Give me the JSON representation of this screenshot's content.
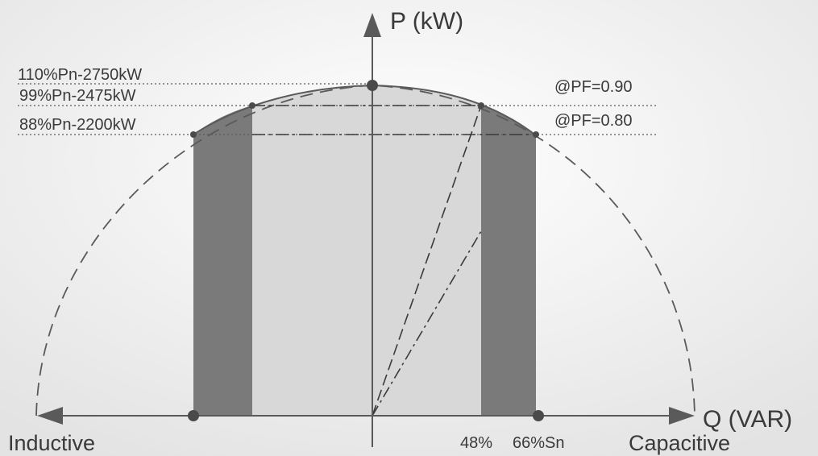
{
  "axes": {
    "y_label": "P (kW)",
    "x_label": "Q (VAR)",
    "left_label": "Inductive",
    "right_label": "Capacitive"
  },
  "levels": [
    {
      "label": "110%Pn-2750kW",
      "percent_pn": 110,
      "kw": 2750
    },
    {
      "label": "99%Pn-2475kW",
      "percent_pn": 99,
      "kw": 2475
    },
    {
      "label": "88%Pn-2200kW",
      "percent_pn": 88,
      "kw": 2200
    }
  ],
  "power_factors": [
    {
      "label": "@PF=0.90",
      "value": 0.9
    },
    {
      "label": "@PF=0.80",
      "value": 0.8
    }
  ],
  "q_markers": [
    {
      "label": "48%",
      "percent": 48
    },
    {
      "label": "66%Sn",
      "percent": 66
    }
  ],
  "colors": {
    "background_light": "#ffffff",
    "background_dark": "#e3e3e3",
    "inner_region": "#d8d8d8",
    "band_region": "#7a7a7a",
    "lines": "#5a5a5a",
    "text": "#3a3a3a"
  }
}
